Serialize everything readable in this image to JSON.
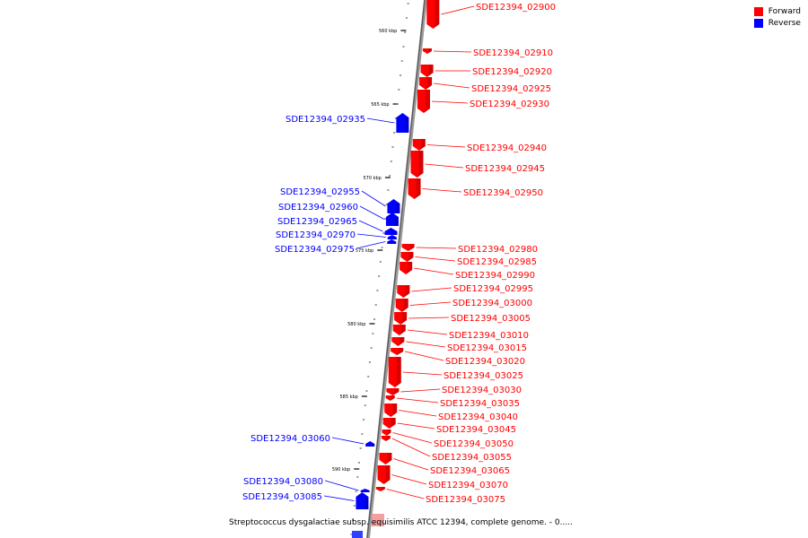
{
  "legend": {
    "forward_label": "Forward",
    "reverse_label": "Reverse",
    "forward_color": "#ff0000",
    "reverse_color": "#0000ff"
  },
  "caption": "Streptococcus dysgalactiae subsp. equisimilis ATCC 12394, complete genome. - 0.....",
  "ticks": [
    "560 kbp",
    "565 kbp",
    "570 kbp",
    "575 kbp",
    "580 kbp",
    "585 kbp",
    "590 kbp"
  ],
  "genes": [
    {
      "name": "SDE12394_02900",
      "strand": "forward"
    },
    {
      "name": "SDE12394_02910",
      "strand": "forward"
    },
    {
      "name": "SDE12394_02920",
      "strand": "forward"
    },
    {
      "name": "SDE12394_02925",
      "strand": "forward"
    },
    {
      "name": "SDE12394_02930",
      "strand": "forward"
    },
    {
      "name": "SDE12394_02935",
      "strand": "reverse"
    },
    {
      "name": "SDE12394_02940",
      "strand": "forward"
    },
    {
      "name": "SDE12394_02945",
      "strand": "forward"
    },
    {
      "name": "SDE12394_02950",
      "strand": "forward"
    },
    {
      "name": "SDE12394_02955",
      "strand": "reverse"
    },
    {
      "name": "SDE12394_02960",
      "strand": "reverse"
    },
    {
      "name": "SDE12394_02965",
      "strand": "reverse"
    },
    {
      "name": "SDE12394_02970",
      "strand": "reverse"
    },
    {
      "name": "SDE12394_02975",
      "strand": "reverse"
    },
    {
      "name": "SDE12394_02980",
      "strand": "forward"
    },
    {
      "name": "SDE12394_02985",
      "strand": "forward"
    },
    {
      "name": "SDE12394_02990",
      "strand": "forward"
    },
    {
      "name": "SDE12394_02995",
      "strand": "forward"
    },
    {
      "name": "SDE12394_03000",
      "strand": "forward"
    },
    {
      "name": "SDE12394_03005",
      "strand": "forward"
    },
    {
      "name": "SDE12394_03010",
      "strand": "forward"
    },
    {
      "name": "SDE12394_03015",
      "strand": "forward"
    },
    {
      "name": "SDE12394_03020",
      "strand": "forward"
    },
    {
      "name": "SDE12394_03025",
      "strand": "forward"
    },
    {
      "name": "SDE12394_03030",
      "strand": "forward"
    },
    {
      "name": "SDE12394_03035",
      "strand": "forward"
    },
    {
      "name": "SDE12394_03040",
      "strand": "forward"
    },
    {
      "name": "SDE12394_03045",
      "strand": "forward"
    },
    {
      "name": "SDE12394_03050",
      "strand": "forward"
    },
    {
      "name": "SDE12394_03055",
      "strand": "forward"
    },
    {
      "name": "SDE12394_03060",
      "strand": "reverse"
    },
    {
      "name": "SDE12394_03065",
      "strand": "forward"
    },
    {
      "name": "SDE12394_03070",
      "strand": "forward"
    },
    {
      "name": "SDE12394_03075",
      "strand": "forward"
    },
    {
      "name": "SDE12394_03080",
      "strand": "reverse"
    },
    {
      "name": "SDE12394_03085",
      "strand": "reverse"
    }
  ]
}
